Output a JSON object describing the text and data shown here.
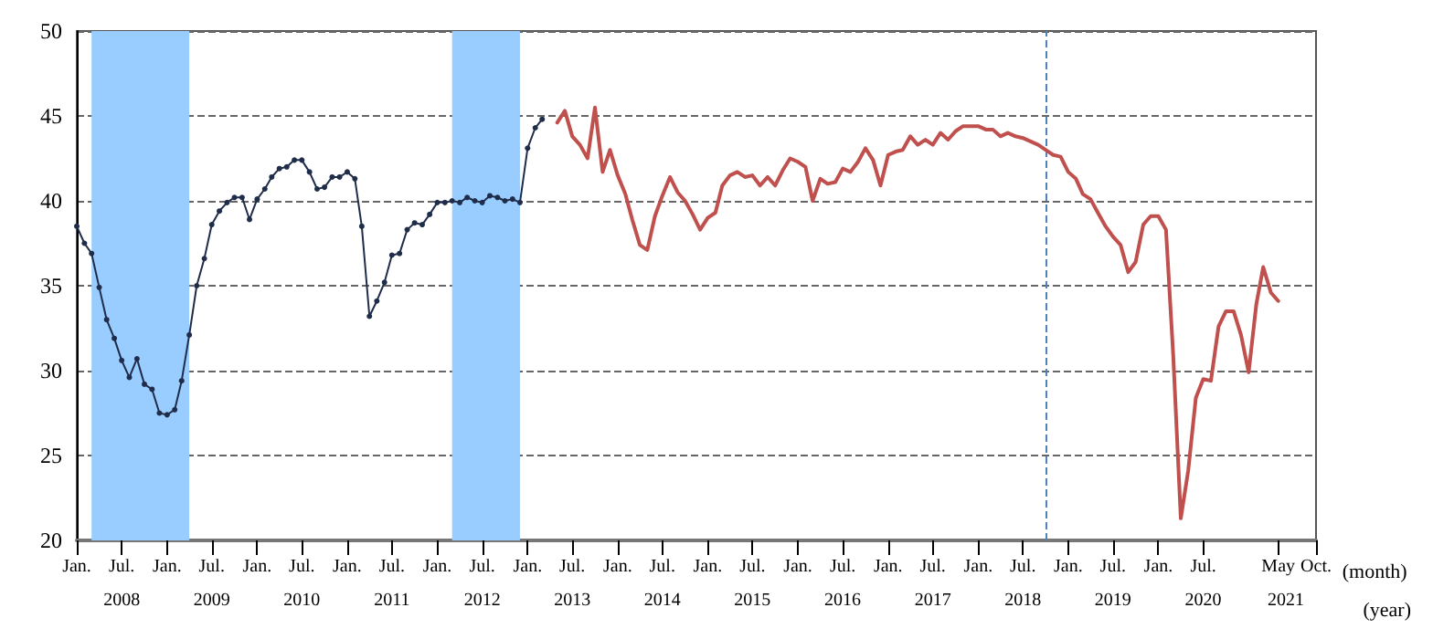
{
  "chart_data": {
    "type": "line",
    "xlabel": "(month)",
    "annotations": [
      "(year)"
    ],
    "xlim": [
      "2008-01",
      "2021-10"
    ],
    "ylim": [
      20,
      50
    ],
    "yticks": [
      20,
      25,
      30,
      35,
      40,
      45,
      50
    ],
    "grid": "y",
    "x2lim": [
      "2008-01",
      "2021-10"
    ],
    "x2ticks": [
      {
        "value": "2008-07",
        "label": "2008"
      },
      {
        "value": "2009-07",
        "label": "2009"
      },
      {
        "value": "2010-07",
        "label": "2010"
      },
      {
        "value": "2011-07",
        "label": "2011"
      },
      {
        "value": "2012-07",
        "label": "2012"
      },
      {
        "value": "2013-07",
        "label": "2013"
      },
      {
        "value": "2014-07",
        "label": "2014"
      },
      {
        "value": "2015-07",
        "label": "2015"
      },
      {
        "value": "2016-07",
        "label": "2016"
      },
      {
        "value": "2017-07",
        "label": "2017"
      },
      {
        "value": "2018-07",
        "label": "2018"
      },
      {
        "value": "2019-07",
        "label": "2019"
      },
      {
        "value": "2020-07",
        "label": "2020"
      },
      {
        "value": "2021-06",
        "label": "2021"
      }
    ],
    "xticks": [
      {
        "value": "2008-01",
        "label": "Jan."
      },
      {
        "value": "2008-07",
        "label": "Jul."
      },
      {
        "value": "2009-01",
        "label": "Jan."
      },
      {
        "value": "2009-07",
        "label": "Jul."
      },
      {
        "value": "2010-01",
        "label": "Jan."
      },
      {
        "value": "2010-07",
        "label": "Jul."
      },
      {
        "value": "2011-01",
        "label": "Jan."
      },
      {
        "value": "2011-07",
        "label": "Jul."
      },
      {
        "value": "2012-01",
        "label": "Jan."
      },
      {
        "value": "2012-07",
        "label": "Jul."
      },
      {
        "value": "2013-01",
        "label": "Jan."
      },
      {
        "value": "2013-07",
        "label": "Jul."
      },
      {
        "value": "2014-01",
        "label": "Jan."
      },
      {
        "value": "2014-07",
        "label": "Jul."
      },
      {
        "value": "2015-01",
        "label": "Jan."
      },
      {
        "value": "2015-07",
        "label": "Jul."
      },
      {
        "value": "2016-01",
        "label": "Jan."
      },
      {
        "value": "2016-07",
        "label": "Jul."
      },
      {
        "value": "2017-01",
        "label": "Jan."
      },
      {
        "value": "2017-07",
        "label": "Jul."
      },
      {
        "value": "2018-01",
        "label": "Jan."
      },
      {
        "value": "2018-07",
        "label": "Jul."
      },
      {
        "value": "2019-01",
        "label": "Jan."
      },
      {
        "value": "2019-07",
        "label": "Jul."
      },
      {
        "value": "2020-01",
        "label": "Jan."
      },
      {
        "value": "2020-07",
        "label": "Jul."
      },
      {
        "value": "2021-05",
        "label": "May"
      },
      {
        "value": "2021-10",
        "label": "Oct."
      }
    ],
    "bands": [
      {
        "axis": "x",
        "from": "2008-03",
        "to": "2009-04",
        "color": "#99ccff"
      },
      {
        "axis": "x",
        "from": "2012-03",
        "to": "2012-12",
        "color": "#99ccff"
      }
    ],
    "ref_lines": [
      {
        "axis": "x",
        "value": "2018-10",
        "color": "#4f81bd",
        "line_style": "dashed"
      }
    ],
    "series": [
      {
        "color": "#1f2d4a",
        "marker": "circle",
        "x": [
          "2008-01",
          "2008-02",
          "2008-03",
          "2008-04",
          "2008-05",
          "2008-06",
          "2008-07",
          "2008-08",
          "2008-09",
          "2008-10",
          "2008-11",
          "2008-12",
          "2009-01",
          "2009-02",
          "2009-03",
          "2009-04",
          "2009-05",
          "2009-06",
          "2009-07",
          "2009-08",
          "2009-09",
          "2009-10",
          "2009-11",
          "2009-12",
          "2010-01",
          "2010-02",
          "2010-03",
          "2010-04",
          "2010-05",
          "2010-06",
          "2010-07",
          "2010-08",
          "2010-09",
          "2010-10",
          "2010-11",
          "2010-12",
          "2011-01",
          "2011-02",
          "2011-03",
          "2011-04",
          "2011-05",
          "2011-06",
          "2011-07",
          "2011-08",
          "2011-09",
          "2011-10",
          "2011-11",
          "2011-12",
          "2012-01",
          "2012-02",
          "2012-03",
          "2012-04",
          "2012-05",
          "2012-06",
          "2012-07",
          "2012-08",
          "2012-09",
          "2012-10",
          "2012-11",
          "2012-12",
          "2013-01",
          "2013-02",
          "2013-03"
        ],
        "values": [
          38.5,
          37.5,
          36.9,
          34.9,
          33.0,
          31.9,
          30.6,
          29.6,
          30.7,
          29.2,
          28.9,
          27.5,
          27.4,
          27.7,
          29.4,
          32.1,
          35.0,
          36.6,
          38.6,
          39.4,
          39.9,
          40.2,
          40.2,
          38.9,
          40.1,
          40.7,
          41.4,
          41.9,
          42.0,
          42.4,
          42.4,
          41.7,
          40.7,
          40.8,
          41.4,
          41.4,
          41.7,
          41.3,
          38.5,
          33.2,
          34.1,
          35.2,
          36.8,
          36.9,
          38.3,
          38.7,
          38.6,
          39.2,
          39.9,
          39.9,
          40.0,
          39.9,
          40.2,
          40.0,
          39.9,
          40.3,
          40.2,
          40.0,
          40.1,
          39.9,
          43.1,
          44.3,
          44.8
        ]
      },
      {
        "color": "#c0504d",
        "marker": "none",
        "x": [
          "2013-05",
          "2013-06",
          "2013-07",
          "2013-08",
          "2013-09",
          "2013-10",
          "2013-11",
          "2013-12",
          "2014-01",
          "2014-02",
          "2014-03",
          "2014-04",
          "2014-05",
          "2014-06",
          "2014-07",
          "2014-08",
          "2014-09",
          "2014-10",
          "2014-11",
          "2014-12",
          "2015-01",
          "2015-02",
          "2015-03",
          "2015-04",
          "2015-05",
          "2015-06",
          "2015-07",
          "2015-08",
          "2015-09",
          "2015-10",
          "2015-11",
          "2015-12",
          "2016-01",
          "2016-02",
          "2016-03",
          "2016-04",
          "2016-05",
          "2016-06",
          "2016-07",
          "2016-08",
          "2016-09",
          "2016-10",
          "2016-11",
          "2016-12",
          "2017-01",
          "2017-02",
          "2017-03",
          "2017-04",
          "2017-05",
          "2017-06",
          "2017-07",
          "2017-08",
          "2017-09",
          "2017-10",
          "2017-11",
          "2017-12",
          "2018-01",
          "2018-02",
          "2018-03",
          "2018-04",
          "2018-05",
          "2018-06",
          "2018-07",
          "2018-08",
          "2018-09",
          "2018-10",
          "2018-11",
          "2018-12",
          "2019-01",
          "2019-02",
          "2019-03",
          "2019-04",
          "2019-05",
          "2019-06",
          "2019-07",
          "2019-08",
          "2019-09",
          "2019-10",
          "2019-11",
          "2019-12",
          "2020-01",
          "2020-02",
          "2020-03",
          "2020-04",
          "2020-05",
          "2020-06",
          "2020-07",
          "2020-08",
          "2020-09",
          "2020-10",
          "2020-11",
          "2020-12",
          "2021-01",
          "2021-02",
          "2021-03",
          "2021-04",
          "2021-05"
        ],
        "values": [
          44.6,
          45.3,
          43.8,
          43.3,
          42.5,
          45.5,
          41.7,
          43.0,
          41.5,
          40.4,
          38.9,
          37.4,
          37.1,
          39.1,
          40.3,
          41.4,
          40.5,
          40.0,
          39.2,
          38.3,
          39.0,
          39.3,
          40.9,
          41.5,
          41.7,
          41.4,
          41.5,
          40.9,
          41.4,
          40.9,
          41.8,
          42.5,
          42.3,
          42.0,
          40.0,
          41.3,
          41.0,
          41.1,
          41.9,
          41.7,
          42.3,
          43.1,
          42.4,
          40.9,
          42.7,
          42.9,
          43.0,
          43.8,
          43.3,
          43.6,
          43.3,
          44.0,
          43.6,
          44.1,
          44.4,
          44.4,
          44.4,
          44.2,
          44.2,
          43.8,
          44.0,
          43.8,
          43.7,
          43.5,
          43.3,
          43.0,
          42.7,
          42.6,
          41.7,
          41.3,
          40.4,
          40.1,
          39.3,
          38.5,
          37.9,
          37.4,
          35.8,
          36.4,
          38.6,
          39.1,
          39.1,
          38.3,
          31.0,
          21.3,
          24.1,
          28.4,
          29.5,
          29.4,
          32.6,
          33.5,
          33.5,
          32.1,
          29.9,
          33.9,
          36.1,
          34.6,
          34.1
        ]
      }
    ]
  }
}
